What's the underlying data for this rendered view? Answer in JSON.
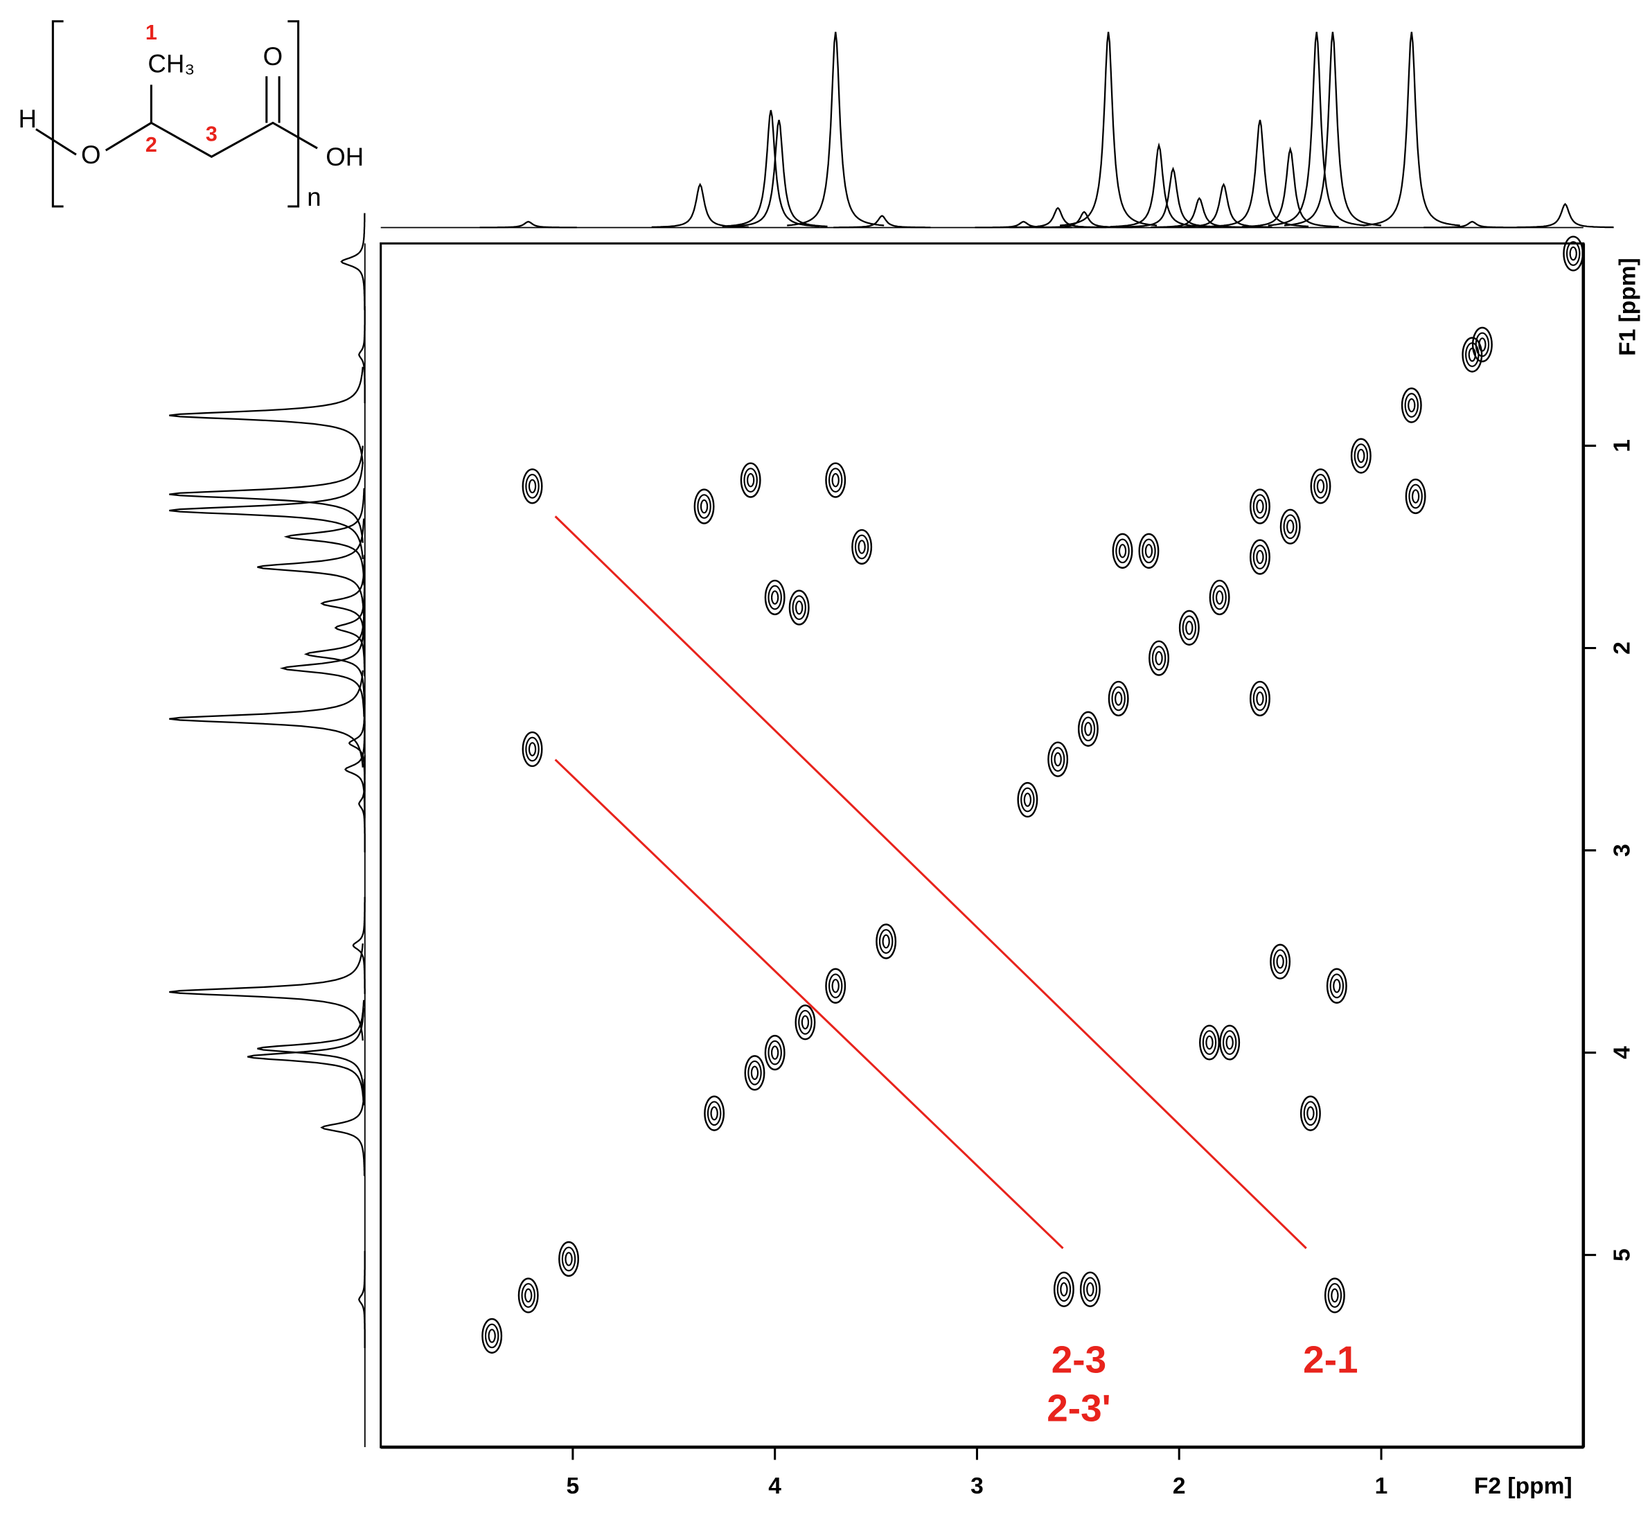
{
  "chart_data": {
    "type": "contour",
    "xlabel": "F2 [ppm]",
    "ylabel": "F1 [ppm]",
    "xlim": [
      5.95,
      0
    ],
    "ylim": [
      0,
      5.95
    ],
    "xticks": [
      5,
      4,
      3,
      2,
      1
    ],
    "yticks": [
      1,
      2,
      3,
      4,
      5
    ],
    "x": [
      5.2,
      4.35,
      4.12,
      3.7,
      3.57,
      4.0,
      3.88,
      5.2,
      2.28,
      2.15,
      1.22,
      1.5,
      1.85,
      1.75,
      1.35,
      2.57,
      2.44,
      1.23,
      1.6,
      0.83,
      1.6,
      0.5,
      5.4,
      5.22,
      5.02,
      4.3,
      4.1,
      4.0,
      3.85,
      3.7,
      3.45,
      2.75,
      2.6,
      2.45,
      2.3,
      2.1,
      1.95,
      1.8,
      1.6,
      1.45,
      1.3,
      1.1,
      0.85,
      0.55,
      0.05
    ],
    "values": [
      1.2,
      1.3,
      1.17,
      1.17,
      1.5,
      1.75,
      1.8,
      2.5,
      1.52,
      1.52,
      3.67,
      3.55,
      3.95,
      3.95,
      4.3,
      5.17,
      5.17,
      5.2,
      2.25,
      1.25,
      1.3,
      0.5,
      5.4,
      5.2,
      5.02,
      4.3,
      4.1,
      4.0,
      3.85,
      3.67,
      3.45,
      2.75,
      2.55,
      2.4,
      2.25,
      2.05,
      1.9,
      1.75,
      1.55,
      1.4,
      1.2,
      1.05,
      0.8,
      0.55,
      0.05
    ],
    "projection": {
      "x": [
        5.22,
        4.37,
        4.02,
        3.98,
        3.7,
        3.47,
        2.77,
        2.6,
        2.47,
        2.35,
        2.1,
        2.03,
        1.9,
        1.78,
        1.6,
        1.45,
        1.32,
        1.24,
        0.85,
        0.55,
        0.09
      ],
      "values": [
        3,
        22,
        60,
        55,
        100,
        6,
        3,
        10,
        8,
        100,
        42,
        30,
        15,
        22,
        55,
        40,
        100,
        100,
        100,
        3,
        12
      ]
    },
    "annotations": [
      "2-3",
      "2-3'",
      "2-1"
    ]
  },
  "structure": {
    "atoms": [
      "H",
      "O",
      "CH₃",
      "O",
      "OH",
      "n"
    ],
    "labels": [
      "1",
      "2",
      "3"
    ]
  }
}
